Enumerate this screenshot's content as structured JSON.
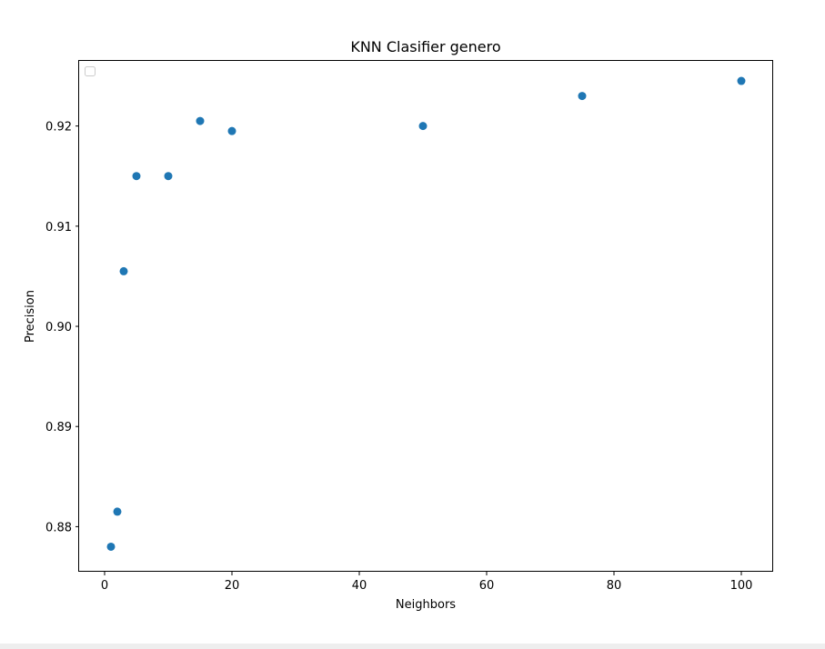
{
  "chart_data": {
    "type": "scatter",
    "title": "KNN Clasifier genero",
    "xlabel": "Neighbors",
    "ylabel": "Precision",
    "xlim": [
      -4,
      105
    ],
    "ylim": [
      0.8755,
      0.9265
    ],
    "xticks": [
      0,
      20,
      40,
      60,
      80,
      100
    ],
    "xtick_labels": [
      "0",
      "20",
      "40",
      "60",
      "80",
      "100"
    ],
    "yticks": [
      0.88,
      0.89,
      0.9,
      0.91,
      0.92
    ],
    "ytick_labels": [
      "0.88",
      "0.89",
      "0.90",
      "0.91",
      "0.92"
    ],
    "series": [
      {
        "color": "#1f77b4",
        "x": [
          1,
          2,
          3,
          5,
          10,
          15,
          20,
          50,
          75,
          100
        ],
        "y": [
          0.878,
          0.8815,
          0.9055,
          0.915,
          0.915,
          0.9205,
          0.9195,
          0.92,
          0.923,
          0.9245
        ]
      }
    ],
    "grid": false,
    "legend": {
      "position": "upper-left",
      "entries": []
    }
  }
}
